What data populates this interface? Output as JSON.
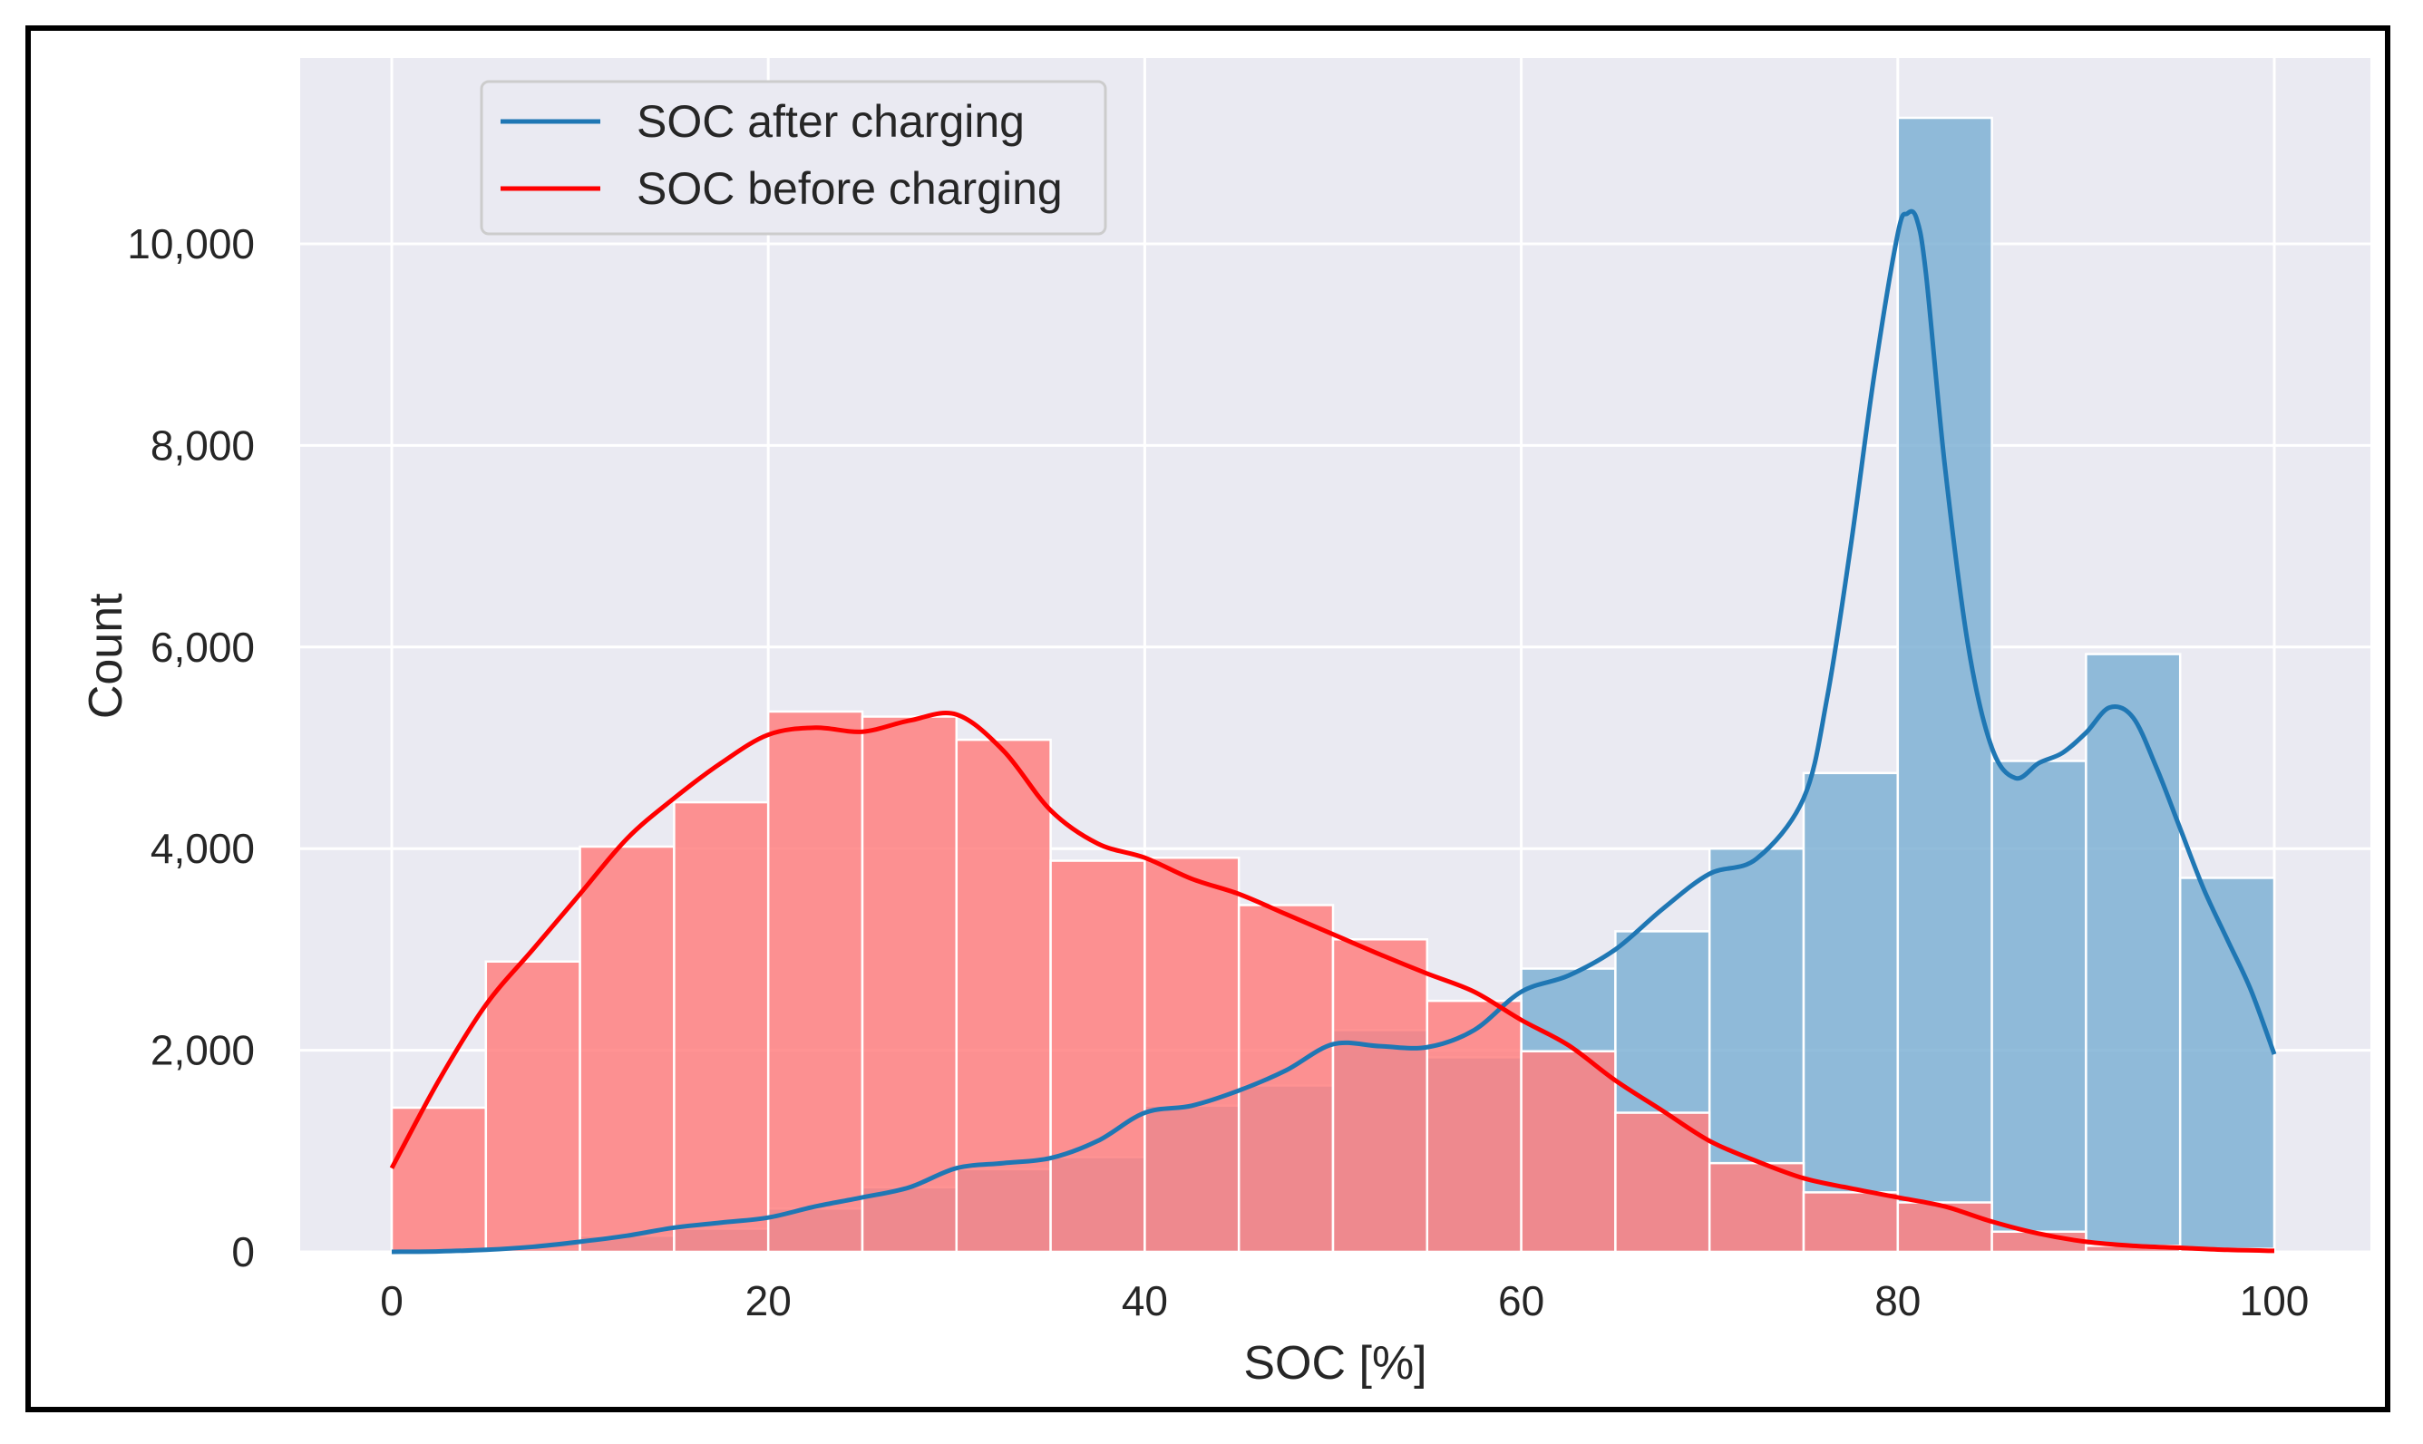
{
  "chart_data": {
    "type": "histogram",
    "title": "",
    "xlabel": "SOC [%]",
    "ylabel": "Count",
    "xlim": [
      -5,
      105
    ],
    "ylim": [
      0,
      11500
    ],
    "xticks": [
      0,
      20,
      40,
      60,
      80,
      100
    ],
    "xtick_labels": [
      "0",
      "20",
      "40",
      "60",
      "80",
      "100"
    ],
    "yticks": [
      0,
      2000,
      4000,
      6000,
      8000,
      10000
    ],
    "ytick_labels": [
      "0",
      "2,000",
      "4,000",
      "6,000",
      "8,000",
      "10,000"
    ],
    "grid": true,
    "legend_position": "top-left",
    "bin_edges": [
      0,
      5,
      10,
      15,
      20,
      25,
      30,
      35,
      40,
      45,
      50,
      55,
      60,
      65,
      70,
      75,
      80,
      85,
      90,
      95,
      100
    ],
    "series": [
      {
        "name": "SOC after charging",
        "color": "#1f77b4",
        "bar_color": "#7fb2d5",
        "counts": [
          10,
          30,
          160,
          230,
          430,
          640,
          820,
          940,
          1450,
          1650,
          2200,
          1930,
          2810,
          3180,
          4000,
          4750,
          11250,
          4870,
          5930,
          3710
        ],
        "kde_x": [
          0,
          2.5,
          5,
          7.5,
          10,
          12.5,
          15,
          17.5,
          20,
          22.5,
          25,
          27.5,
          30,
          32.5,
          35,
          37.5,
          40,
          42.5,
          45,
          47.5,
          50,
          52.5,
          55,
          57.5,
          60,
          62.5,
          65,
          67.5,
          70,
          72.5,
          75,
          76.25,
          77.5,
          78.75,
          80,
          80.5,
          81,
          81.5,
          82.5,
          83.75,
          85,
          86.25,
          87.5,
          88.75,
          90,
          91.25,
          92.5,
          93.75,
          95,
          96.25,
          97.5,
          98.75,
          100
        ],
        "kde_y": [
          0,
          5,
          20,
          50,
          100,
          160,
          240,
          290,
          340,
          450,
          540,
          640,
          830,
          880,
          930,
          1100,
          1380,
          1450,
          1600,
          1800,
          2060,
          2040,
          2030,
          2200,
          2580,
          2740,
          3000,
          3400,
          3750,
          3900,
          4500,
          5500,
          7000,
          8700,
          10100,
          10300,
          10250,
          9700,
          7800,
          6000,
          5000,
          4700,
          4850,
          4950,
          5150,
          5400,
          5300,
          4800,
          4200,
          3600,
          3100,
          2600,
          1960
        ]
      },
      {
        "name": "SOC before charging",
        "color": "#ff0000",
        "bar_color": "#ff8080",
        "counts": [
          1430,
          2880,
          4020,
          4460,
          5360,
          5310,
          5080,
          3880,
          3910,
          3440,
          3100,
          2490,
          1990,
          1380,
          880,
          590,
          490,
          200,
          60,
          30
        ],
        "kde_x": [
          0,
          2.5,
          5,
          7.5,
          10,
          12.5,
          15,
          17.5,
          20,
          22.5,
          25,
          27.5,
          30,
          32.5,
          35,
          37.5,
          40,
          42.5,
          45,
          47.5,
          50,
          52.5,
          55,
          57.5,
          60,
          62.5,
          65,
          67.5,
          70,
          72.5,
          75,
          77.5,
          80,
          82.5,
          85,
          87.5,
          90,
          92.5,
          95,
          97.5,
          100
        ],
        "kde_y": [
          830,
          1700,
          2450,
          3000,
          3550,
          4100,
          4500,
          4850,
          5130,
          5200,
          5160,
          5270,
          5330,
          4970,
          4380,
          4050,
          3910,
          3700,
          3550,
          3350,
          3150,
          2950,
          2760,
          2580,
          2300,
          2050,
          1700,
          1400,
          1100,
          900,
          730,
          630,
          540,
          450,
          300,
          180,
          100,
          60,
          40,
          20,
          10
        ]
      }
    ]
  }
}
